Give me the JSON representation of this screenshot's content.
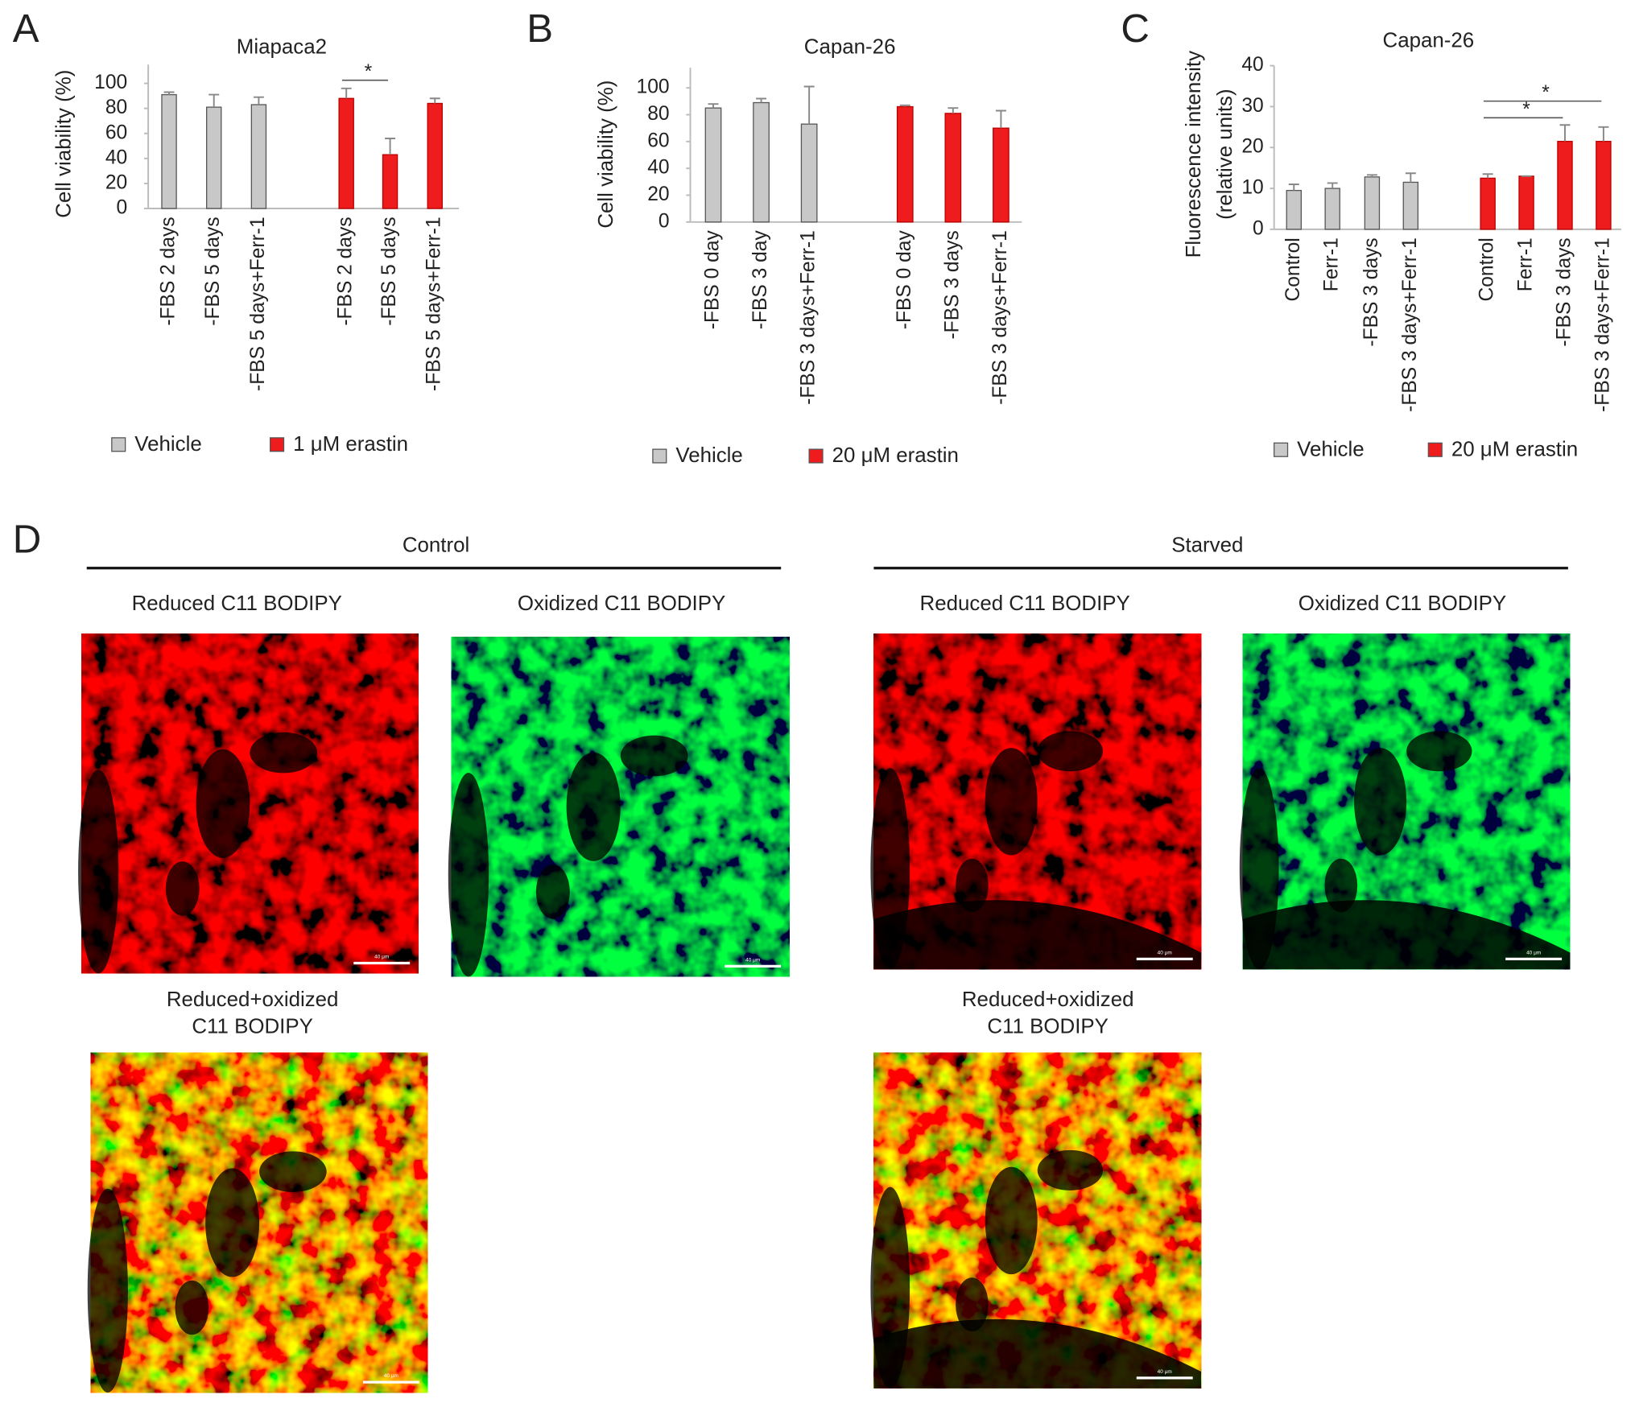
{
  "chart_data": [
    {
      "type": "bar",
      "panel": "A",
      "title": "Miapaca2",
      "y_label": [
        "Cell viability (%)"
      ],
      "categories": [
        "-FBS 2 days",
        "-FBS 5 days",
        "-FBS 5 days+Ferr-1",
        "-FBS 2 days",
        "-FBS 5 days",
        "-FBS 5 days+Ferr-1"
      ],
      "series": [
        {
          "name": "Vehicle",
          "color": "#c8c8c8",
          "values": [
            91,
            81,
            83,
            null,
            null,
            null
          ],
          "errors": [
            2,
            10,
            6,
            null,
            null,
            null
          ]
        },
        {
          "name": "1 μM erastin",
          "color": "#ee1c1c",
          "values": [
            null,
            null,
            null,
            88,
            43,
            84
          ],
          "errors": [
            null,
            null,
            null,
            8,
            13,
            4
          ]
        }
      ],
      "ylim": [
        0,
        115
      ],
      "yticks": [
        0,
        20,
        40,
        60,
        80,
        100
      ],
      "annotations": [
        "*"
      ]
    },
    {
      "type": "bar",
      "panel": "B",
      "title": "Capan-26",
      "y_label": [
        "Cell viability (%)"
      ],
      "categories": [
        "-FBS 0 day",
        "-FBS 3 day",
        "-FBS 3 days+Ferr-1",
        "-FBS 0 day",
        "-FBS 3 days",
        "-FBS 3 days+Ferr-1"
      ],
      "series": [
        {
          "name": "Vehicle",
          "color": "#c8c8c8",
          "values": [
            85,
            89,
            73,
            null,
            null,
            null
          ],
          "errors": [
            3,
            3,
            28,
            null,
            null,
            null
          ]
        },
        {
          "name": "20 μM erastin",
          "color": "#ee1c1c",
          "values": [
            null,
            null,
            null,
            86,
            81,
            70
          ],
          "errors": [
            null,
            null,
            null,
            1,
            4,
            13
          ]
        }
      ],
      "ylim": [
        0,
        115
      ],
      "yticks": [
        0,
        20,
        40,
        60,
        80,
        100
      ],
      "annotations": []
    },
    {
      "type": "bar",
      "panel": "C",
      "title": "Capan-26",
      "y_label": [
        "Fluorescence intensity",
        "(relative units)"
      ],
      "categories": [
        "Control",
        "Ferr-1",
        "-FBS 3 days",
        "-FBS 3 days+Ferr-1",
        "Control",
        "Ferr-1",
        "-FBS 3 days",
        "-FBS 3 days+Ferr-1"
      ],
      "series": [
        {
          "name": "Vehicle",
          "color": "#c8c8c8",
          "values": [
            9.5,
            10,
            12.8,
            11.5,
            null,
            null,
            null,
            null
          ],
          "errors": [
            1.5,
            1.3,
            0.5,
            2.2,
            null,
            null,
            null,
            null
          ]
        },
        {
          "name": "20 μM erastin",
          "color": "#ee1c1c",
          "values": [
            null,
            null,
            null,
            null,
            12.5,
            13,
            21.5,
            21.5
          ],
          "errors": [
            null,
            null,
            null,
            null,
            1,
            0,
            4,
            3.5
          ]
        }
      ],
      "ylim": [
        0,
        40
      ],
      "yticks": [
        0,
        10,
        20,
        30,
        40
      ],
      "annotations": [
        "*",
        "*"
      ]
    }
  ],
  "panel_d": {
    "letter": "D",
    "groups": [
      {
        "title": "Control",
        "panels": [
          [
            "Reduced C11 BODIPY"
          ],
          [
            "Oxidized C11 BODIPY"
          ],
          [
            "Reduced+oxidized",
            "C11 BODIPY"
          ]
        ]
      },
      {
        "title": "Starved",
        "panels": [
          [
            "Reduced C11 BODIPY"
          ],
          [
            "Oxidized C11 BODIPY"
          ],
          [
            "Reduced+oxidized",
            "C11 BODIPY"
          ]
        ]
      }
    ],
    "scale_bar": "40 μm"
  }
}
